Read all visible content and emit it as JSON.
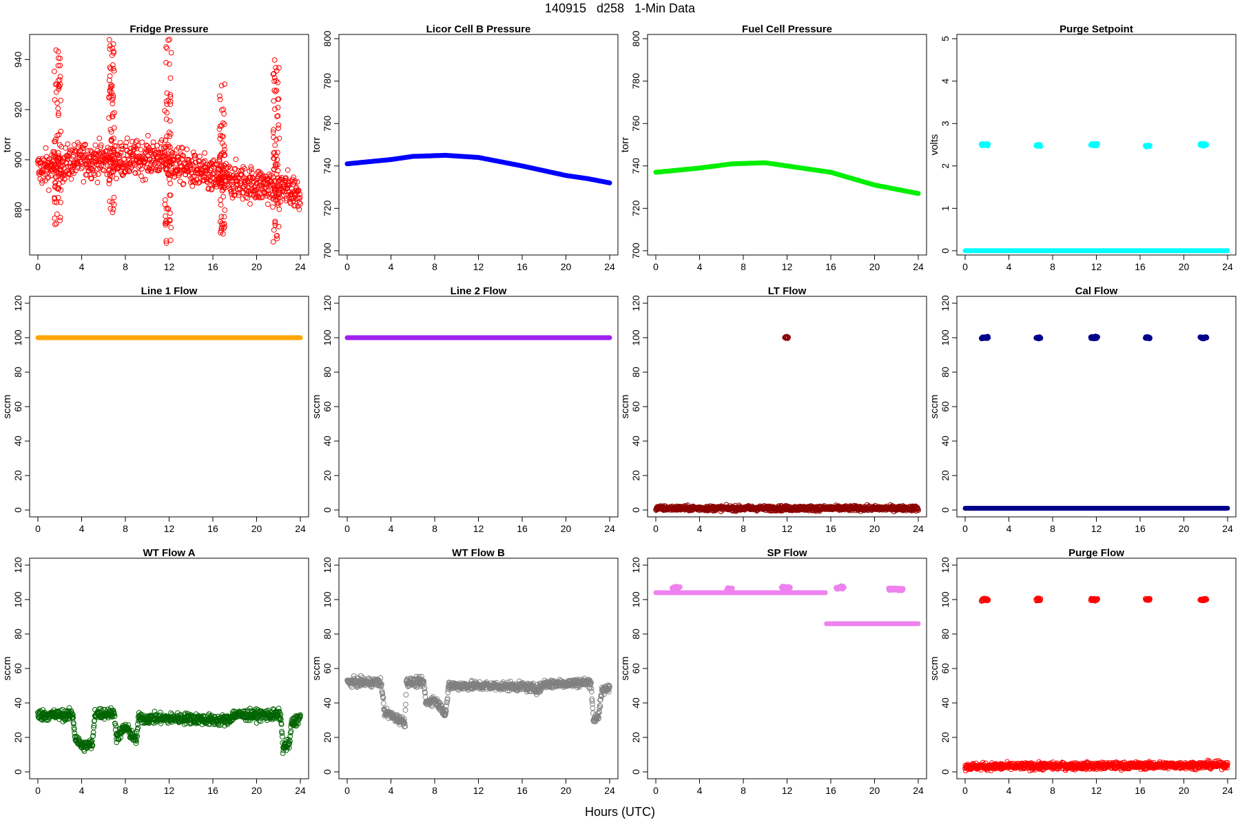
{
  "figure": {
    "title": "140915   d258   1-Min Data",
    "x_axis_label": "Hours (UTC)"
  },
  "chart_data": [
    {
      "type": "scatter",
      "title": "Fridge Pressure",
      "ylabel": "torr",
      "color": "#ff0000",
      "xlim": [
        0,
        24
      ],
      "ylim": [
        862,
        950
      ],
      "x_ticks": [
        0,
        4,
        8,
        12,
        16,
        20,
        24
      ],
      "y_ticks": [
        880,
        900,
        920,
        940
      ],
      "marker": "open-circle",
      "trend": [
        [
          0,
          896
        ],
        [
          4,
          900
        ],
        [
          8,
          900
        ],
        [
          11,
          901
        ],
        [
          14,
          896
        ],
        [
          16,
          893
        ],
        [
          20,
          890
        ],
        [
          22,
          889
        ],
        [
          24,
          887
        ]
      ],
      "noise": 5,
      "spikes": [
        {
          "x": [
            1.5,
            2.1
          ],
          "y": [
            874,
            944
          ]
        },
        {
          "x": [
            6.5,
            7.0
          ],
          "y": [
            878,
            950
          ]
        },
        {
          "x": [
            11.6,
            12.2
          ],
          "y": [
            864,
            948
          ]
        },
        {
          "x": [
            16.6,
            17.1
          ],
          "y": [
            870,
            931
          ]
        },
        {
          "x": [
            21.5,
            22.1
          ],
          "y": [
            867,
            941
          ]
        }
      ]
    },
    {
      "type": "scatter",
      "title": "Licor Cell B Pressure",
      "ylabel": "torr",
      "color": "#0000ff",
      "xlim": [
        0,
        24
      ],
      "ylim": [
        698,
        802
      ],
      "x_ticks": [
        0,
        4,
        8,
        12,
        16,
        20,
        24
      ],
      "y_ticks": [
        700,
        720,
        740,
        760,
        780,
        800
      ],
      "marker": "dense-line",
      "trend": [
        [
          0,
          741
        ],
        [
          4,
          743
        ],
        [
          6,
          744.5
        ],
        [
          9,
          745
        ],
        [
          12,
          744
        ],
        [
          16,
          740
        ],
        [
          20,
          735.5
        ],
        [
          22,
          734
        ],
        [
          24,
          732
        ]
      ],
      "noise": 0.3,
      "spikes": []
    },
    {
      "type": "scatter",
      "title": "Fuel Cell Pressure",
      "ylabel": "torr",
      "color": "#00ee00",
      "xlim": [
        0,
        24
      ],
      "ylim": [
        698,
        802
      ],
      "x_ticks": [
        0,
        4,
        8,
        12,
        16,
        20,
        24
      ],
      "y_ticks": [
        700,
        720,
        740,
        760,
        780,
        800
      ],
      "marker": "dense-line",
      "trend": [
        [
          0,
          737
        ],
        [
          4,
          739
        ],
        [
          7,
          741
        ],
        [
          10,
          741.5
        ],
        [
          12,
          740
        ],
        [
          16,
          737
        ],
        [
          20,
          731
        ],
        [
          22,
          729
        ],
        [
          24,
          727
        ]
      ],
      "noise": 0.3,
      "spikes": []
    },
    {
      "type": "scatter",
      "title": "Purge Setpoint",
      "ylabel": "volts",
      "color": "#00ffff",
      "xlim": [
        0,
        24
      ],
      "ylim": [
        -0.1,
        5.1
      ],
      "x_ticks": [
        0,
        4,
        8,
        12,
        16,
        20,
        24
      ],
      "y_ticks": [
        0,
        1,
        2,
        3,
        4,
        5
      ],
      "marker": "dense-line",
      "trend": [
        [
          0,
          0
        ],
        [
          24,
          0
        ]
      ],
      "noise": 0,
      "clusters": [
        {
          "x": [
            1.5,
            2.1
          ],
          "y": 2.5
        },
        {
          "x": [
            6.5,
            6.9
          ],
          "y": 2.48
        },
        {
          "x": [
            11.5,
            12.1
          ],
          "y": 2.5
        },
        {
          "x": [
            16.5,
            16.9
          ],
          "y": 2.47
        },
        {
          "x": [
            21.5,
            22.1
          ],
          "y": 2.5
        }
      ]
    },
    {
      "type": "scatter",
      "title": "Line 1 Flow",
      "ylabel": "sccm",
      "color": "#ffa500",
      "xlim": [
        0,
        24
      ],
      "ylim": [
        -4,
        124
      ],
      "x_ticks": [
        0,
        4,
        8,
        12,
        16,
        20,
        24
      ],
      "y_ticks": [
        0,
        20,
        40,
        60,
        80,
        100,
        120
      ],
      "marker": "dense-line",
      "trend": [
        [
          0,
          100
        ],
        [
          24,
          100
        ]
      ],
      "noise": 0,
      "spikes": []
    },
    {
      "type": "scatter",
      "title": "Line 2 Flow",
      "ylabel": "sccm",
      "color": "#a020f0",
      "xlim": [
        0,
        24
      ],
      "ylim": [
        -4,
        124
      ],
      "x_ticks": [
        0,
        4,
        8,
        12,
        16,
        20,
        24
      ],
      "y_ticks": [
        0,
        20,
        40,
        60,
        80,
        100,
        120
      ],
      "marker": "dense-line",
      "trend": [
        [
          0,
          100
        ],
        [
          24,
          100
        ]
      ],
      "noise": 0,
      "spikes": []
    },
    {
      "type": "scatter",
      "title": "LT Flow",
      "ylabel": "sccm",
      "color": "#8b0000",
      "xlim": [
        0,
        24
      ],
      "ylim": [
        -4,
        124
      ],
      "x_ticks": [
        0,
        4,
        8,
        12,
        16,
        20,
        24
      ],
      "y_ticks": [
        0,
        20,
        40,
        60,
        80,
        100,
        120
      ],
      "marker": "open-circle",
      "trend": [
        [
          0,
          1
        ],
        [
          24,
          1
        ]
      ],
      "noise": 1,
      "clusters": [
        {
          "x": [
            11.8,
            12.1
          ],
          "y": 100
        }
      ]
    },
    {
      "type": "scatter",
      "title": "Cal Flow",
      "ylabel": "sccm",
      "color": "#00008b",
      "xlim": [
        0,
        24
      ],
      "ylim": [
        -4,
        124
      ],
      "x_ticks": [
        0,
        4,
        8,
        12,
        16,
        20,
        24
      ],
      "y_ticks": [
        0,
        20,
        40,
        60,
        80,
        100,
        120
      ],
      "marker": "dense-line",
      "trend": [
        [
          0,
          1
        ],
        [
          24,
          1
        ]
      ],
      "noise": 0,
      "clusters": [
        {
          "x": [
            1.5,
            2.1
          ],
          "y": 100
        },
        {
          "x": [
            6.5,
            6.9
          ],
          "y": 100
        },
        {
          "x": [
            11.5,
            12.1
          ],
          "y": 100
        },
        {
          "x": [
            16.5,
            16.9
          ],
          "y": 100
        },
        {
          "x": [
            21.5,
            22.1
          ],
          "y": 100
        }
      ]
    },
    {
      "type": "scatter",
      "title": "WT Flow A",
      "ylabel": "sccm",
      "color": "#006400",
      "xlim": [
        0,
        24
      ],
      "ylim": [
        -4,
        124
      ],
      "x_ticks": [
        0,
        4,
        8,
        12,
        16,
        20,
        24
      ],
      "y_ticks": [
        0,
        20,
        40,
        60,
        80,
        100,
        120
      ],
      "marker": "open-circle",
      "trend": [
        [
          0,
          33
        ],
        [
          3.2,
          33
        ],
        [
          3.4,
          20
        ],
        [
          4,
          15
        ],
        [
          5,
          16
        ],
        [
          5.2,
          34
        ],
        [
          7,
          34
        ],
        [
          7.2,
          20
        ],
        [
          8,
          26
        ],
        [
          9,
          18
        ],
        [
          9.2,
          31
        ],
        [
          14,
          31
        ],
        [
          16,
          30
        ],
        [
          17.5,
          30
        ],
        [
          17.8,
          33
        ],
        [
          22.2,
          33
        ],
        [
          22.4,
          14
        ],
        [
          23,
          16
        ],
        [
          23.2,
          28
        ],
        [
          24,
          32
        ]
      ],
      "noise": 2.2,
      "spikes": []
    },
    {
      "type": "scatter",
      "title": "WT Flow B",
      "ylabel": "sccm",
      "color": "#808080",
      "xlim": [
        0,
        24
      ],
      "ylim": [
        -4,
        124
      ],
      "x_ticks": [
        0,
        4,
        8,
        12,
        16,
        20,
        24
      ],
      "y_ticks": [
        0,
        20,
        40,
        60,
        80,
        100,
        120
      ],
      "marker": "open-circle",
      "trend": [
        [
          0,
          52
        ],
        [
          3.1,
          52
        ],
        [
          3.4,
          35
        ],
        [
          4.5,
          31
        ],
        [
          5.3,
          29
        ],
        [
          5.4,
          52
        ],
        [
          7,
          52
        ],
        [
          7.2,
          40
        ],
        [
          8,
          42
        ],
        [
          9,
          34
        ],
        [
          9.3,
          50
        ],
        [
          12,
          50
        ],
        [
          16,
          49.5
        ],
        [
          17.5,
          48
        ],
        [
          18,
          51
        ],
        [
          22.3,
          52
        ],
        [
          22.5,
          30
        ],
        [
          23,
          33
        ],
        [
          23.3,
          47
        ],
        [
          24,
          49
        ]
      ],
      "noise": 1.8,
      "spikes": []
    },
    {
      "type": "scatter",
      "title": "SP Flow",
      "ylabel": "sccm",
      "color": "#ee82ee",
      "xlim": [
        0,
        24
      ],
      "ylim": [
        -4,
        124
      ],
      "x_ticks": [
        0,
        4,
        8,
        12,
        16,
        20,
        24
      ],
      "y_ticks": [
        0,
        20,
        40,
        60,
        80,
        100,
        120
      ],
      "marker": "dense-line",
      "trend": [
        [
          0,
          104
        ],
        [
          15.5,
          104
        ],
        [
          15.6,
          86
        ],
        [
          24,
          86
        ]
      ],
      "noise": 0,
      "clusters": [
        {
          "x": [
            1.5,
            2.2
          ],
          "y": 107
        },
        {
          "x": [
            6.5,
            7.0
          ],
          "y": 106
        },
        {
          "x": [
            11.5,
            12.3
          ],
          "y": 107
        },
        {
          "x": [
            16.5,
            17.2
          ],
          "y": 107
        },
        {
          "x": [
            21.3,
            22.6
          ],
          "y": 106
        }
      ]
    },
    {
      "type": "scatter",
      "title": "Purge Flow",
      "ylabel": "sccm",
      "color": "#ff0000",
      "xlim": [
        0,
        24
      ],
      "ylim": [
        -4,
        124
      ],
      "x_ticks": [
        0,
        4,
        8,
        12,
        16,
        20,
        24
      ],
      "y_ticks": [
        0,
        20,
        40,
        60,
        80,
        100,
        120
      ],
      "marker": "open-circle",
      "trend": [
        [
          0,
          3
        ],
        [
          24,
          4
        ]
      ],
      "noise": 1.4,
      "clusters": [
        {
          "x": [
            1.5,
            2.1
          ],
          "y": 100
        },
        {
          "x": [
            6.5,
            6.9
          ],
          "y": 100
        },
        {
          "x": [
            11.5,
            12.1
          ],
          "y": 100
        },
        {
          "x": [
            16.5,
            16.9
          ],
          "y": 100
        },
        {
          "x": [
            21.5,
            22.1
          ],
          "y": 100
        }
      ]
    }
  ]
}
